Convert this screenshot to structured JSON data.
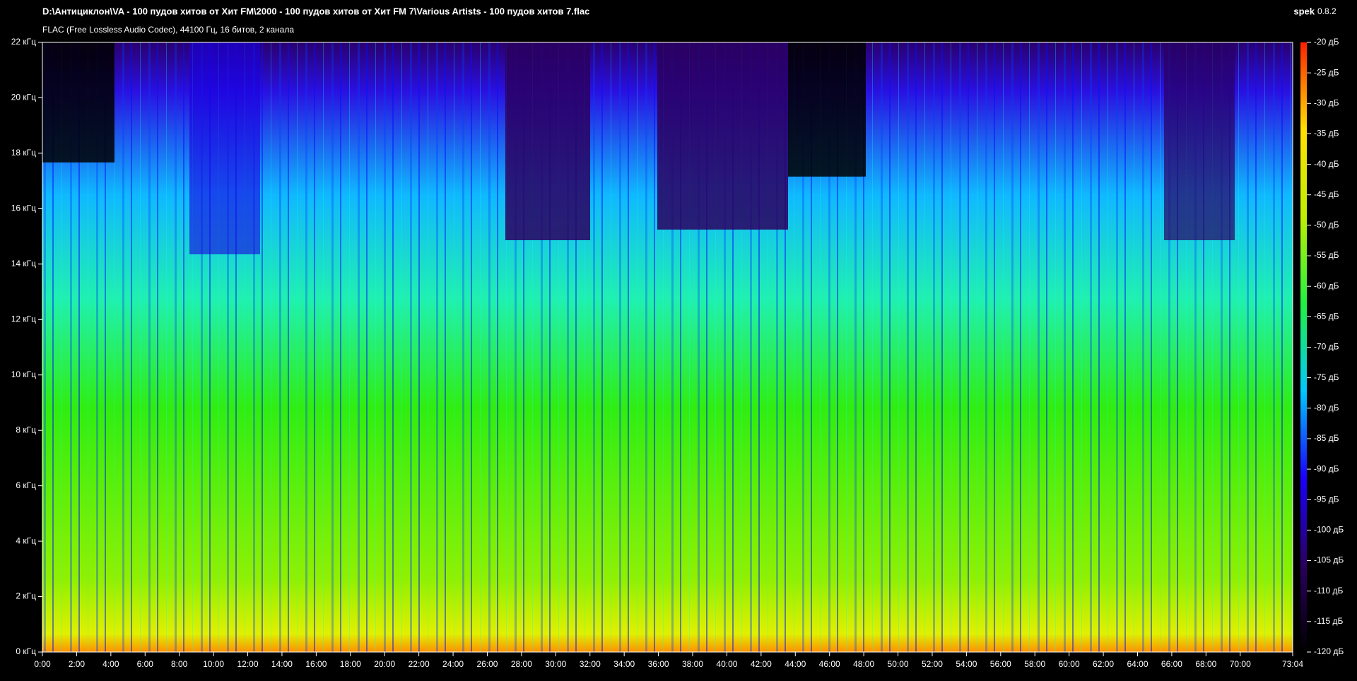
{
  "chart_data": {
    "type": "spectrogram",
    "title": "D:\\Антициклон\\VA - 100 пудов хитов от Хит FM\\2000 - 100 пудов хитов от Хит FM 7\\Various Artists - 100 пудов хитов 7.flac",
    "subtitle": "FLAC (Free Lossless Audio Codec), 44100 Гц, 16 битов, 2 канала",
    "app_name": "spek",
    "app_version": "0.8.2",
    "xlim": [
      0,
      4384
    ],
    "xticks": [
      {
        "value": 0,
        "label": "0:00"
      },
      {
        "value": 120,
        "label": "2:00"
      },
      {
        "value": 240,
        "label": "4:00"
      },
      {
        "value": 360,
        "label": "6:00"
      },
      {
        "value": 480,
        "label": "8:00"
      },
      {
        "value": 600,
        "label": "10:00"
      },
      {
        "value": 720,
        "label": "12:00"
      },
      {
        "value": 840,
        "label": "14:00"
      },
      {
        "value": 960,
        "label": "16:00"
      },
      {
        "value": 1080,
        "label": "18:00"
      },
      {
        "value": 1200,
        "label": "20:00"
      },
      {
        "value": 1320,
        "label": "22:00"
      },
      {
        "value": 1440,
        "label": "24:00"
      },
      {
        "value": 1560,
        "label": "26:00"
      },
      {
        "value": 1680,
        "label": "28:00"
      },
      {
        "value": 1800,
        "label": "30:00"
      },
      {
        "value": 1920,
        "label": "32:00"
      },
      {
        "value": 2040,
        "label": "34:00"
      },
      {
        "value": 2160,
        "label": "36:00"
      },
      {
        "value": 2280,
        "label": "38:00"
      },
      {
        "value": 2400,
        "label": "40:00"
      },
      {
        "value": 2520,
        "label": "42:00"
      },
      {
        "value": 2640,
        "label": "44:00"
      },
      {
        "value": 2760,
        "label": "46:00"
      },
      {
        "value": 2880,
        "label": "48:00"
      },
      {
        "value": 3000,
        "label": "50:00"
      },
      {
        "value": 3120,
        "label": "52:00"
      },
      {
        "value": 3240,
        "label": "54:00"
      },
      {
        "value": 3360,
        "label": "56:00"
      },
      {
        "value": 3480,
        "label": "58:00"
      },
      {
        "value": 3600,
        "label": "60:00"
      },
      {
        "value": 3720,
        "label": "62:00"
      },
      {
        "value": 3840,
        "label": "64:00"
      },
      {
        "value": 3960,
        "label": "66:00"
      },
      {
        "value": 4080,
        "label": "68:00"
      },
      {
        "value": 4200,
        "label": "70:00"
      },
      {
        "value": 4384,
        "label": "73:04"
      }
    ],
    "ylim": [
      0,
      22
    ],
    "yticks": [
      {
        "value": 0,
        "label": "0 кГц"
      },
      {
        "value": 2,
        "label": "2 кГц"
      },
      {
        "value": 4,
        "label": "4 кГц"
      },
      {
        "value": 6,
        "label": "6 кГц"
      },
      {
        "value": 8,
        "label": "8 кГц"
      },
      {
        "value": 10,
        "label": "10 кГц"
      },
      {
        "value": 12,
        "label": "12 кГц"
      },
      {
        "value": 14,
        "label": "14 кГц"
      },
      {
        "value": 16,
        "label": "16 кГц"
      },
      {
        "value": 18,
        "label": "18 кГц"
      },
      {
        "value": 20,
        "label": "20 кГц"
      },
      {
        "value": 22,
        "label": "22 кГц"
      }
    ],
    "colorbar": {
      "lim": [
        -120,
        -20
      ],
      "colors": [
        "#000000",
        "#2a0060",
        "#1a00ff",
        "#00c8ff",
        "#20f040",
        "#c0f000",
        "#ffe000",
        "#ff2000"
      ],
      "ticks": [
        {
          "value": -20,
          "label": "-20 дБ"
        },
        {
          "value": -25,
          "label": "-25 дБ"
        },
        {
          "value": -30,
          "label": "-30 дБ"
        },
        {
          "value": -35,
          "label": "-35 дБ"
        },
        {
          "value": -40,
          "label": "-40 дБ"
        },
        {
          "value": -45,
          "label": "-45 дБ"
        },
        {
          "value": -50,
          "label": "-50 дБ"
        },
        {
          "value": -55,
          "label": "-55 дБ"
        },
        {
          "value": -60,
          "label": "-60 дБ"
        },
        {
          "value": -65,
          "label": "-65 дБ"
        },
        {
          "value": -70,
          "label": "-70 дБ"
        },
        {
          "value": -75,
          "label": "-75 дБ"
        },
        {
          "value": -80,
          "label": "-80 дБ"
        },
        {
          "value": -85,
          "label": "-85 дБ"
        },
        {
          "value": -90,
          "label": "-90 дБ"
        },
        {
          "value": -95,
          "label": "-95 дБ"
        },
        {
          "value": -100,
          "label": "-100 дБ"
        },
        {
          "value": -105,
          "label": "-105 дБ"
        },
        {
          "value": -110,
          "label": "-110 дБ"
        },
        {
          "value": -115,
          "label": "-115 дБ"
        },
        {
          "value": -120,
          "label": "-120 дБ"
        }
      ]
    }
  }
}
